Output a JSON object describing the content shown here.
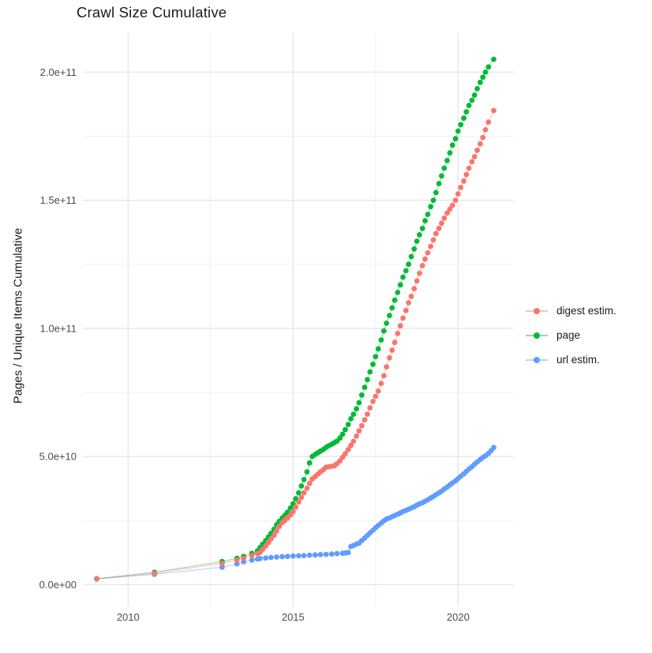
{
  "title": "Crawl Size Cumulative",
  "axes": {
    "y_label": "Pages / Unique Items Cumulative",
    "y_tick_labels": [
      "0.0e+00",
      "5.0e+10",
      "1.0e+11",
      "1.5e+11",
      "2.0e+11"
    ],
    "x_tick_labels": [
      "2010",
      "2015",
      "2020"
    ]
  },
  "colors": {
    "digest": "#F8766D",
    "page": "#00BA38",
    "url": "#619CFF",
    "grid_major": "#E4E4E4",
    "grid_minor": "#EDEDED",
    "tick_text": "#4D4D4D",
    "title_text": "#1a1a1a",
    "background": "#FFFFFF"
  },
  "chart_data": {
    "type": "scatter",
    "title": "Crawl Size Cumulative",
    "xlabel": "",
    "ylabel": "Pages / Unique Items Cumulative",
    "value_unit": "1e9 (billions of pages / unique items)",
    "x_unit": "year",
    "grid": true,
    "legend_position": "right",
    "xlim": [
      2008.63,
      2021.69
    ],
    "ylim_e9": [
      -8.5,
      215.2
    ],
    "x_major_ticks": [
      2010,
      2015,
      2020
    ],
    "x_minor_ticks": [
      2012.5,
      2017.5
    ],
    "y_major_ticks_e9": [
      0,
      50,
      100,
      150,
      200
    ],
    "y_minor_ticks_e9": [
      25,
      75,
      125,
      175
    ],
    "y_tick_labels": [
      "0.0e+00",
      "5.0e+10",
      "1.0e+11",
      "1.5e+11",
      "2.0e+11"
    ],
    "series": [
      {
        "name": "digest estim.",
        "color": "#F8766D",
        "points": [
          [
            2009.05,
            2.3
          ],
          [
            2010.8,
            4.4
          ],
          [
            2012.85,
            8.3
          ],
          [
            2013.3,
            9.6
          ],
          [
            2013.5,
            10.3
          ],
          [
            2013.75,
            11.4
          ],
          [
            2013.92,
            12.1
          ],
          [
            2014.0,
            12.6
          ],
          [
            2014.08,
            13.8
          ],
          [
            2014.17,
            15.1
          ],
          [
            2014.25,
            16.4
          ],
          [
            2014.33,
            17.8
          ],
          [
            2014.42,
            19.3
          ],
          [
            2014.5,
            21.0
          ],
          [
            2014.58,
            22.7
          ],
          [
            2014.67,
            24.2
          ],
          [
            2014.75,
            25.1
          ],
          [
            2014.83,
            26.1
          ],
          [
            2014.92,
            27.2
          ],
          [
            2015.0,
            28.5
          ],
          [
            2015.08,
            30.3
          ],
          [
            2015.17,
            32.2
          ],
          [
            2015.25,
            34.0
          ],
          [
            2015.33,
            35.8
          ],
          [
            2015.42,
            37.6
          ],
          [
            2015.5,
            39.5
          ],
          [
            2015.58,
            41.2
          ],
          [
            2015.67,
            42.2
          ],
          [
            2015.75,
            43.1
          ],
          [
            2015.83,
            44.0
          ],
          [
            2015.92,
            44.9
          ],
          [
            2016.0,
            45.8
          ],
          [
            2016.08,
            46.0
          ],
          [
            2016.17,
            46.2
          ],
          [
            2016.25,
            46.4
          ],
          [
            2016.33,
            47.2
          ],
          [
            2016.42,
            48.3
          ],
          [
            2016.5,
            49.7
          ],
          [
            2016.58,
            51.1
          ],
          [
            2016.67,
            52.7
          ],
          [
            2016.75,
            54.3
          ],
          [
            2016.83,
            55.9
          ],
          [
            2016.92,
            58.0
          ],
          [
            2017.0,
            60.0
          ],
          [
            2017.08,
            62.0
          ],
          [
            2017.17,
            64.3
          ],
          [
            2017.25,
            66.5
          ],
          [
            2017.33,
            69.0
          ],
          [
            2017.42,
            71.5
          ],
          [
            2017.5,
            73.5
          ],
          [
            2017.58,
            75.5
          ],
          [
            2017.67,
            78.5
          ],
          [
            2017.75,
            81.5
          ],
          [
            2017.83,
            85.0
          ],
          [
            2017.92,
            88.5
          ],
          [
            2018.0,
            91.5
          ],
          [
            2018.08,
            94.5
          ],
          [
            2018.17,
            98.0
          ],
          [
            2018.25,
            101.0
          ],
          [
            2018.33,
            104.0
          ],
          [
            2018.42,
            107.0
          ],
          [
            2018.5,
            110.0
          ],
          [
            2018.58,
            112.5
          ],
          [
            2018.67,
            115.5
          ],
          [
            2018.75,
            118.5
          ],
          [
            2018.83,
            121.5
          ],
          [
            2018.92,
            124.5
          ],
          [
            2019.0,
            127.0
          ],
          [
            2019.08,
            129.5
          ],
          [
            2019.17,
            132.0
          ],
          [
            2019.25,
            134.5
          ],
          [
            2019.33,
            137.0
          ],
          [
            2019.42,
            139.0
          ],
          [
            2019.5,
            141.0
          ],
          [
            2019.58,
            143.0
          ],
          [
            2019.67,
            145.0
          ],
          [
            2019.75,
            146.5
          ],
          [
            2019.83,
            148.0
          ],
          [
            2019.92,
            150.0
          ],
          [
            2020.0,
            152.5
          ],
          [
            2020.08,
            155.0
          ],
          [
            2020.17,
            157.5
          ],
          [
            2020.25,
            160.0
          ],
          [
            2020.33,
            162.5
          ],
          [
            2020.42,
            165.0
          ],
          [
            2020.5,
            167.0
          ],
          [
            2020.58,
            169.5
          ],
          [
            2020.67,
            172.0
          ],
          [
            2020.75,
            174.5
          ],
          [
            2020.83,
            177.5
          ],
          [
            2020.92,
            180.5
          ],
          [
            2021.08,
            185.0
          ]
        ]
      },
      {
        "name": "page",
        "color": "#00BA38",
        "points": [
          [
            2009.05,
            2.3
          ],
          [
            2010.8,
            4.8
          ],
          [
            2012.85,
            9.0
          ],
          [
            2013.3,
            10.3
          ],
          [
            2013.5,
            11.0
          ],
          [
            2013.75,
            12.2
          ],
          [
            2013.92,
            13.2
          ],
          [
            2014.0,
            14.5
          ],
          [
            2014.08,
            15.8
          ],
          [
            2014.17,
            17.2
          ],
          [
            2014.25,
            18.6
          ],
          [
            2014.33,
            20.0
          ],
          [
            2014.42,
            21.6
          ],
          [
            2014.5,
            23.4
          ],
          [
            2014.58,
            24.7
          ],
          [
            2014.67,
            26.0
          ],
          [
            2014.75,
            27.1
          ],
          [
            2014.83,
            28.3
          ],
          [
            2014.92,
            29.9
          ],
          [
            2015.0,
            31.6
          ],
          [
            2015.08,
            33.5
          ],
          [
            2015.17,
            35.8
          ],
          [
            2015.25,
            38.5
          ],
          [
            2015.33,
            41.0
          ],
          [
            2015.42,
            44.0
          ],
          [
            2015.5,
            47.5
          ],
          [
            2015.58,
            50.0
          ],
          [
            2015.67,
            50.8
          ],
          [
            2015.75,
            51.5
          ],
          [
            2015.83,
            52.1
          ],
          [
            2015.92,
            52.8
          ],
          [
            2016.0,
            53.6
          ],
          [
            2016.08,
            54.2
          ],
          [
            2016.17,
            54.8
          ],
          [
            2016.25,
            55.4
          ],
          [
            2016.33,
            56.0
          ],
          [
            2016.42,
            57.2
          ],
          [
            2016.5,
            58.7
          ],
          [
            2016.58,
            60.5
          ],
          [
            2016.67,
            62.5
          ],
          [
            2016.75,
            64.7
          ],
          [
            2016.83,
            66.5
          ],
          [
            2016.92,
            68.6
          ],
          [
            2017.0,
            71.0
          ],
          [
            2017.08,
            74.0
          ],
          [
            2017.17,
            77.0
          ],
          [
            2017.25,
            80.0
          ],
          [
            2017.33,
            83.0
          ],
          [
            2017.42,
            86.0
          ],
          [
            2017.5,
            89.0
          ],
          [
            2017.58,
            92.0
          ],
          [
            2017.67,
            95.5
          ],
          [
            2017.75,
            99.0
          ],
          [
            2017.83,
            102.0
          ],
          [
            2017.92,
            105.0
          ],
          [
            2018.0,
            108.0
          ],
          [
            2018.08,
            111.0
          ],
          [
            2018.17,
            114.0
          ],
          [
            2018.25,
            117.0
          ],
          [
            2018.33,
            120.0
          ],
          [
            2018.42,
            122.5
          ],
          [
            2018.5,
            125.0
          ],
          [
            2018.58,
            128.0
          ],
          [
            2018.67,
            131.0
          ],
          [
            2018.75,
            134.0
          ],
          [
            2018.83,
            136.5
          ],
          [
            2018.92,
            139.0
          ],
          [
            2019.0,
            142.0
          ],
          [
            2019.08,
            144.5
          ],
          [
            2019.17,
            147.5
          ],
          [
            2019.25,
            150.0
          ],
          [
            2019.33,
            153.0
          ],
          [
            2019.42,
            156.5
          ],
          [
            2019.5,
            159.5
          ],
          [
            2019.58,
            162.5
          ],
          [
            2019.67,
            165.5
          ],
          [
            2019.75,
            168.5
          ],
          [
            2019.83,
            171.5
          ],
          [
            2019.92,
            174.0
          ],
          [
            2020.0,
            177.0
          ],
          [
            2020.08,
            179.5
          ],
          [
            2020.17,
            182.0
          ],
          [
            2020.25,
            184.5
          ],
          [
            2020.33,
            187.0
          ],
          [
            2020.42,
            189.0
          ],
          [
            2020.5,
            191.0
          ],
          [
            2020.58,
            193.5
          ],
          [
            2020.67,
            196.0
          ],
          [
            2020.75,
            198.0
          ],
          [
            2020.83,
            200.0
          ],
          [
            2020.92,
            202.0
          ],
          [
            2021.08,
            205.0
          ]
        ]
      },
      {
        "name": "url estim.",
        "color": "#619CFF",
        "points": [
          [
            2009.05,
            2.2
          ],
          [
            2010.8,
            4.0
          ],
          [
            2012.85,
            6.8
          ],
          [
            2013.3,
            8.1
          ],
          [
            2013.5,
            8.9
          ],
          [
            2013.75,
            9.6
          ],
          [
            2013.92,
            10.0
          ],
          [
            2014.0,
            10.2
          ],
          [
            2014.17,
            10.4
          ],
          [
            2014.33,
            10.6
          ],
          [
            2014.5,
            10.75
          ],
          [
            2014.67,
            10.9
          ],
          [
            2014.83,
            11.0
          ],
          [
            2015.0,
            11.15
          ],
          [
            2015.17,
            11.25
          ],
          [
            2015.33,
            11.35
          ],
          [
            2015.5,
            11.5
          ],
          [
            2015.67,
            11.6
          ],
          [
            2015.83,
            11.7
          ],
          [
            2016.0,
            11.8
          ],
          [
            2016.17,
            11.95
          ],
          [
            2016.33,
            12.1
          ],
          [
            2016.5,
            12.25
          ],
          [
            2016.58,
            12.35
          ],
          [
            2016.67,
            12.5
          ],
          [
            2016.75,
            14.9
          ],
          [
            2016.83,
            15.3
          ],
          [
            2016.92,
            15.8
          ],
          [
            2017.0,
            16.2
          ],
          [
            2017.08,
            17.2
          ],
          [
            2017.17,
            18.2
          ],
          [
            2017.25,
            19.2
          ],
          [
            2017.33,
            20.2
          ],
          [
            2017.42,
            21.2
          ],
          [
            2017.5,
            22.2
          ],
          [
            2017.58,
            23.1
          ],
          [
            2017.67,
            24.0
          ],
          [
            2017.75,
            24.9
          ],
          [
            2017.83,
            25.6
          ],
          [
            2017.92,
            26.0
          ],
          [
            2018.0,
            26.5
          ],
          [
            2018.08,
            27.0
          ],
          [
            2018.17,
            27.5
          ],
          [
            2018.25,
            28.0
          ],
          [
            2018.33,
            28.5
          ],
          [
            2018.42,
            29.0
          ],
          [
            2018.5,
            29.4
          ],
          [
            2018.58,
            29.9
          ],
          [
            2018.67,
            30.4
          ],
          [
            2018.75,
            31.0
          ],
          [
            2018.83,
            31.5
          ],
          [
            2018.92,
            32.0
          ],
          [
            2019.0,
            32.5
          ],
          [
            2019.08,
            33.1
          ],
          [
            2019.17,
            33.8
          ],
          [
            2019.25,
            34.4
          ],
          [
            2019.33,
            35.1
          ],
          [
            2019.42,
            35.8
          ],
          [
            2019.5,
            36.5
          ],
          [
            2019.58,
            37.3
          ],
          [
            2019.67,
            38.1
          ],
          [
            2019.75,
            38.9
          ],
          [
            2019.83,
            39.7
          ],
          [
            2019.92,
            40.5
          ],
          [
            2020.0,
            41.4
          ],
          [
            2020.08,
            42.3
          ],
          [
            2020.17,
            43.2
          ],
          [
            2020.25,
            44.2
          ],
          [
            2020.33,
            45.1
          ],
          [
            2020.42,
            46.0
          ],
          [
            2020.5,
            47.0
          ],
          [
            2020.58,
            47.9
          ],
          [
            2020.67,
            48.8
          ],
          [
            2020.75,
            49.6
          ],
          [
            2020.83,
            50.3
          ],
          [
            2020.92,
            51.2
          ],
          [
            2021.0,
            52.3
          ],
          [
            2021.08,
            53.5
          ]
        ]
      }
    ]
  }
}
